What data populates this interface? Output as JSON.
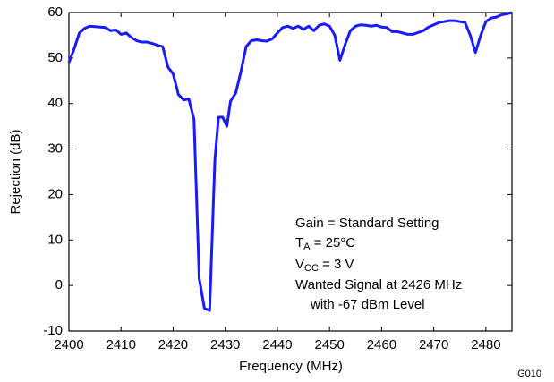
{
  "chart_data": {
    "type": "line",
    "xlabel": "Frequency (MHz)",
    "ylabel": "Rejection (dB)",
    "figure_id": "G010",
    "x": [
      2400,
      2401,
      2402,
      2403,
      2404,
      2406,
      2407,
      2408,
      2409,
      2410,
      2411,
      2412,
      2413,
      2414,
      2415,
      2416,
      2417,
      2418,
      2419,
      2420,
      2421,
      2422,
      2423,
      2424,
      2425,
      2426,
      2427,
      2428,
      2428.7,
      2429.5,
      2430.3,
      2431,
      2432,
      2433,
      2434,
      2435,
      2436,
      2437,
      2438,
      2439,
      2440,
      2441,
      2442,
      2443,
      2444,
      2445,
      2446,
      2447,
      2448,
      2449,
      2450,
      2451,
      2452,
      2453,
      2454,
      2455,
      2456,
      2457,
      2458,
      2459,
      2460,
      2461,
      2462,
      2463,
      2464,
      2465,
      2466,
      2467,
      2468,
      2469,
      2470,
      2471,
      2472,
      2473,
      2474,
      2475,
      2476,
      2477,
      2478,
      2479,
      2480,
      2481,
      2482,
      2483,
      2484,
      2485
    ],
    "series": [
      {
        "color": "#1a1aff",
        "values": [
          49,
          52,
          55.5,
          56.5,
          57,
          56.8,
          56.7,
          56,
          56.2,
          55.2,
          55.5,
          54.5,
          53.8,
          53.5,
          53.5,
          53.2,
          52.8,
          52.5,
          48,
          46.5,
          42,
          40.8,
          41,
          36.5,
          1.5,
          -5,
          -5.5,
          27.5,
          37,
          37,
          35,
          40.5,
          42.3,
          47,
          52.5,
          53.8,
          54,
          53.8,
          53.7,
          54.2,
          55.5,
          56.7,
          57,
          56.5,
          57,
          56.3,
          57,
          56,
          57.2,
          57.5,
          57,
          55,
          49.5,
          53,
          56,
          57,
          57.3,
          57.2,
          57,
          57.2,
          56.8,
          56.7,
          55.8,
          55.8,
          55.5,
          55.2,
          55.2,
          55.6,
          56,
          56.8,
          57.3,
          57.8,
          58,
          58.2,
          58.2,
          58,
          57.8,
          55,
          51.2,
          55,
          58,
          58.8,
          59,
          59.5,
          59.7,
          60
        ]
      }
    ],
    "xlim": [
      2400,
      2485
    ],
    "xticks": [
      2400,
      2410,
      2420,
      2430,
      2440,
      2450,
      2460,
      2470,
      2480
    ],
    "ylim": [
      -10,
      60
    ],
    "yticks": [
      -10,
      0,
      10,
      20,
      30,
      40,
      50,
      60
    ],
    "grid": false,
    "annotations": [
      {
        "text": "Gain = Standard Setting"
      },
      {
        "text": "T",
        "sub": "A",
        "tail": " = 25°C"
      },
      {
        "text": "V",
        "sub": "CC",
        "tail": " = 3 V"
      },
      {
        "text": "Wanted Signal at 2426 MHz"
      },
      {
        "text": "with -67 dBm Level"
      }
    ]
  }
}
